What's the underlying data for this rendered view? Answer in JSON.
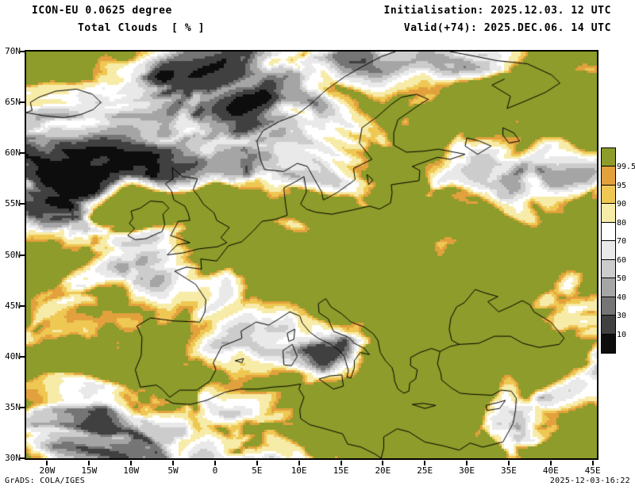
{
  "header": {
    "model": "ICON-EU 0.0625 degree",
    "variable": "Total Clouds  [ % ]",
    "init": "Initialisation: 2025.12.03. 12 UTC",
    "valid": "Valid(+74): 2025.DEC.06. 14 UTC"
  },
  "map": {
    "lon_range": [
      -22.5,
      45.5
    ],
    "lat_range": [
      30,
      70
    ],
    "lat_ticks": [
      {
        "label": "70N",
        "lat": 70
      },
      {
        "label": "65N",
        "lat": 65
      },
      {
        "label": "60N",
        "lat": 60
      },
      {
        "label": "55N",
        "lat": 55
      },
      {
        "label": "50N",
        "lat": 50
      },
      {
        "label": "45N",
        "lat": 45
      },
      {
        "label": "40N",
        "lat": 40
      },
      {
        "label": "35N",
        "lat": 35
      },
      {
        "label": "30N",
        "lat": 30
      }
    ],
    "lon_ticks": [
      {
        "label": "20W",
        "lon": -20
      },
      {
        "label": "15W",
        "lon": -15
      },
      {
        "label": "10W",
        "lon": -10
      },
      {
        "label": "5W",
        "lon": -5
      },
      {
        "label": "0",
        "lon": 0
      },
      {
        "label": "5E",
        "lon": 5
      },
      {
        "label": "10E",
        "lon": 10
      },
      {
        "label": "15E",
        "lon": 15
      },
      {
        "label": "20E",
        "lon": 20
      },
      {
        "label": "25E",
        "lon": 25
      },
      {
        "label": "30E",
        "lon": 30
      },
      {
        "label": "35E",
        "lon": 35
      },
      {
        "label": "40E",
        "lon": 40
      },
      {
        "label": "45E",
        "lon": 45
      }
    ]
  },
  "colorbar": {
    "labels": [
      "99.5",
      "95",
      "90",
      "80",
      "70",
      "60",
      "50",
      "40",
      "30",
      "10"
    ],
    "colors": [
      "#8d9c2a",
      "#e2a13d",
      "#eec852",
      "#f7eba8",
      "#ffffff",
      "#e9e9e9",
      "#cccccc",
      "#a5a5a5",
      "#757575",
      "#404040",
      "#0d0d0d"
    ]
  },
  "footer": {
    "left": "GrADS: COLA/IGES",
    "right": "2025-12-03-16:22"
  }
}
